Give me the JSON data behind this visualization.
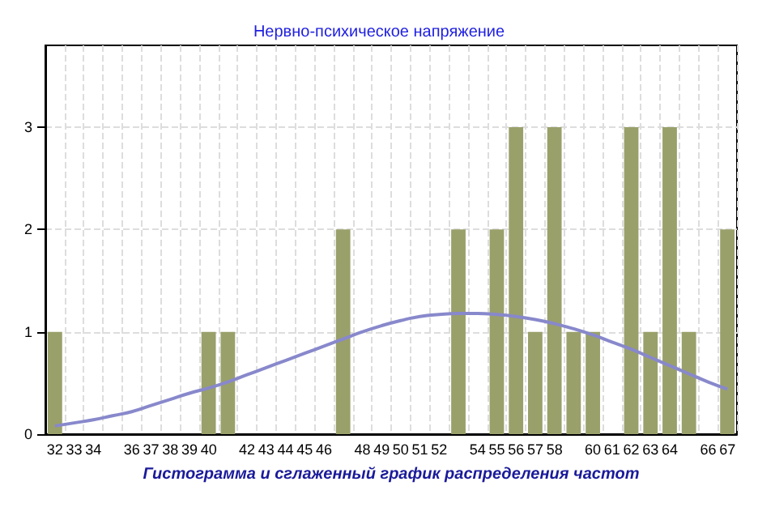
{
  "chart_data": {
    "type": "bar",
    "title": "Нервно-психическое напряжение",
    "xlabel": "Гистограмма и сглаженный график распределения частот",
    "categories": [
      "32",
      "33",
      "34",
      null,
      "36",
      "37",
      "38",
      "39",
      "40",
      null,
      "42",
      "43",
      "44",
      "45",
      "46",
      null,
      "48",
      "49",
      "50",
      "51",
      "52",
      null,
      "54",
      "55",
      "56",
      "57",
      "58",
      null,
      "60",
      "61",
      "62",
      "63",
      "64",
      null,
      "66",
      "67"
    ],
    "series": [
      {
        "color": "#9aa06a",
        "values": [
          1,
          0,
          0,
          0,
          0,
          0,
          0,
          0,
          1,
          1,
          0,
          0,
          0,
          0,
          0,
          2,
          0,
          0,
          0,
          0,
          0,
          2,
          0,
          2,
          3,
          1,
          3,
          1,
          1,
          0,
          3,
          1,
          3,
          1,
          0,
          2
        ]
      },
      {
        "type": "line",
        "color": "#8888cc",
        "values": [
          0.08,
          0.11,
          0.14,
          0.18,
          0.22,
          0.28,
          0.34,
          0.4,
          0.45,
          0.51,
          0.58,
          0.65,
          0.72,
          0.79,
          0.86,
          0.93,
          1.0,
          1.06,
          1.11,
          1.15,
          1.17,
          1.18,
          1.18,
          1.17,
          1.15,
          1.12,
          1.08,
          1.03,
          0.97,
          0.9,
          0.83,
          0.75,
          0.67,
          0.59,
          0.51,
          0.44
        ]
      }
    ],
    "ylim": [
      0,
      3.8
    ],
    "yticks": [
      0,
      1,
      2,
      3
    ],
    "grid": true,
    "marker": "none"
  }
}
